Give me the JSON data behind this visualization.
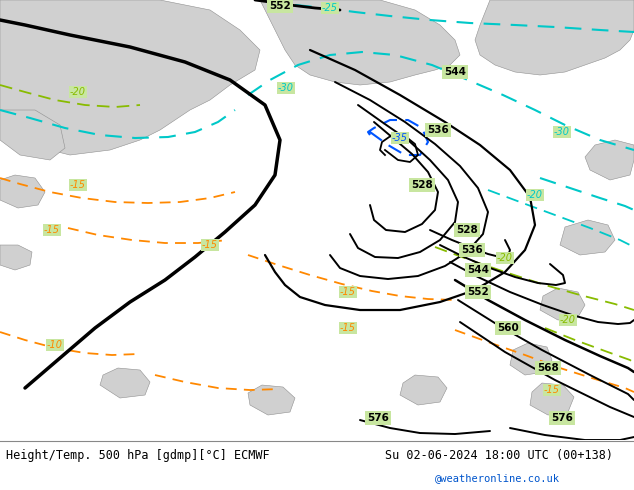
{
  "title_left": "Height/Temp. 500 hPa [gdmp][°C] ECMWF",
  "title_right": "Su 02-06-2024 18:00 UTC (00+138)",
  "credit": "@weatheronline.co.uk",
  "land_color": "#c8e6a0",
  "sea_color": "#d0d0d0",
  "gray_water": "#b8b8b8",
  "height_color": "#000000",
  "cyan_temp_color": "#00c8c8",
  "blue_temp_color": "#0055ff",
  "green_temp_color": "#88bb00",
  "orange_temp_color": "#ff8800",
  "footer_line_color": "#888888"
}
